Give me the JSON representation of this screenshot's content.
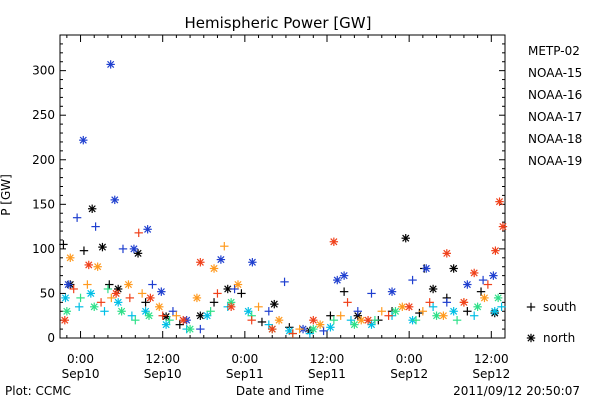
{
  "chart_data": {
    "type": "scatter",
    "title": "Hemispheric Power [GW]",
    "ylabel": "P [GW]",
    "xlabel": "Date and Time",
    "ylim": [
      0,
      340
    ],
    "yticks": [
      0,
      50,
      100,
      150,
      200,
      250,
      300
    ],
    "grid": false,
    "x_unit": "hours",
    "xlim": [
      -3,
      62
    ],
    "xticks": [
      {
        "x": 0,
        "time": "0:00",
        "date": "Sep10"
      },
      {
        "x": 12,
        "time": "12:00",
        "date": "Sep10"
      },
      {
        "x": 24,
        "time": "0:00",
        "date": "Sep11"
      },
      {
        "x": 36,
        "time": "12:00",
        "date": "Sep11"
      },
      {
        "x": 48,
        "time": "0:00",
        "date": "Sep12"
      },
      {
        "x": 60,
        "time": "12:00",
        "date": "Sep12"
      }
    ],
    "legend": {
      "placement": "right",
      "markers": [
        {
          "symbol": "+",
          "label": "south"
        },
        {
          "symbol": "*",
          "label": "north"
        }
      ]
    },
    "series": [
      {
        "name": "METP-02",
        "color": "#000000",
        "points": [
          {
            "x": -2.5,
            "y": 105,
            "m": "+"
          },
          {
            "x": -1.5,
            "y": 60,
            "m": "*"
          },
          {
            "x": 0.5,
            "y": 98,
            "m": "+"
          },
          {
            "x": 1.7,
            "y": 145,
            "m": "*"
          },
          {
            "x": 3.2,
            "y": 102,
            "m": "*"
          },
          {
            "x": 4.2,
            "y": 60,
            "m": "+"
          },
          {
            "x": 5.5,
            "y": 55,
            "m": "*"
          },
          {
            "x": 8.4,
            "y": 95,
            "m": "*"
          },
          {
            "x": 9.5,
            "y": 40,
            "m": "+"
          },
          {
            "x": 12.5,
            "y": 24,
            "m": "*"
          },
          {
            "x": 14.5,
            "y": 15,
            "m": "+"
          },
          {
            "x": 17.5,
            "y": 25,
            "m": "*"
          },
          {
            "x": 19.5,
            "y": 40,
            "m": "+"
          },
          {
            "x": 21.5,
            "y": 55,
            "m": "*"
          },
          {
            "x": 23.5,
            "y": 50,
            "m": "+"
          },
          {
            "x": 26.5,
            "y": 18,
            "m": "+"
          },
          {
            "x": 28.3,
            "y": 38,
            "m": "*"
          },
          {
            "x": 30.5,
            "y": 12,
            "m": "+"
          },
          {
            "x": 33.5,
            "y": 8,
            "m": "*"
          },
          {
            "x": 36.5,
            "y": 25,
            "m": "+"
          },
          {
            "x": 38.5,
            "y": 52,
            "m": "+"
          },
          {
            "x": 40.5,
            "y": 25,
            "m": "*"
          },
          {
            "x": 43.5,
            "y": 20,
            "m": "+"
          },
          {
            "x": 45.5,
            "y": 30,
            "m": "+"
          },
          {
            "x": 47.5,
            "y": 112,
            "m": "*"
          },
          {
            "x": 49.5,
            "y": 28,
            "m": "+"
          },
          {
            "x": 50.2,
            "y": 78,
            "m": "+"
          },
          {
            "x": 51.5,
            "y": 55,
            "m": "*"
          },
          {
            "x": 53.5,
            "y": 45,
            "m": "+"
          },
          {
            "x": 54.5,
            "y": 78,
            "m": "*"
          },
          {
            "x": 56.5,
            "y": 30,
            "m": "+"
          },
          {
            "x": 58.5,
            "y": 52,
            "m": "+"
          },
          {
            "x": 60.5,
            "y": 28,
            "m": "*"
          }
        ]
      },
      {
        "name": "NOAA-15",
        "color": "#1f3fcf",
        "points": [
          {
            "x": -1.8,
            "y": 60,
            "m": "*"
          },
          {
            "x": -0.5,
            "y": 135,
            "m": "+"
          },
          {
            "x": 0.4,
            "y": 222,
            "m": "*"
          },
          {
            "x": 2.2,
            "y": 125,
            "m": "+"
          },
          {
            "x": 4.4,
            "y": 307,
            "m": "*"
          },
          {
            "x": 5.0,
            "y": 155,
            "m": "*"
          },
          {
            "x": 6.2,
            "y": 100,
            "m": "+"
          },
          {
            "x": 7.8,
            "y": 100,
            "m": "*"
          },
          {
            "x": 9.8,
            "y": 122,
            "m": "*"
          },
          {
            "x": 10.5,
            "y": 60,
            "m": "+"
          },
          {
            "x": 11.8,
            "y": 52,
            "m": "*"
          },
          {
            "x": 13.5,
            "y": 30,
            "m": "+"
          },
          {
            "x": 15.5,
            "y": 20,
            "m": "*"
          },
          {
            "x": 17.5,
            "y": 10,
            "m": "+"
          },
          {
            "x": 20.5,
            "y": 88,
            "m": "*"
          },
          {
            "x": 22.5,
            "y": 55,
            "m": "+"
          },
          {
            "x": 25.1,
            "y": 85,
            "m": "*"
          },
          {
            "x": 27.5,
            "y": 30,
            "m": "+"
          },
          {
            "x": 29.8,
            "y": 63,
            "m": "+"
          },
          {
            "x": 32.5,
            "y": 10,
            "m": "*"
          },
          {
            "x": 35.5,
            "y": 8,
            "m": "+"
          },
          {
            "x": 37.5,
            "y": 65,
            "m": "*"
          },
          {
            "x": 38.5,
            "y": 70,
            "m": "*"
          },
          {
            "x": 40.5,
            "y": 30,
            "m": "+"
          },
          {
            "x": 42.5,
            "y": 50,
            "m": "+"
          },
          {
            "x": 45.5,
            "y": 52,
            "m": "*"
          },
          {
            "x": 48.5,
            "y": 65,
            "m": "+"
          },
          {
            "x": 50.5,
            "y": 78,
            "m": "*"
          },
          {
            "x": 53.5,
            "y": 40,
            "m": "+"
          },
          {
            "x": 56.5,
            "y": 60,
            "m": "*"
          },
          {
            "x": 58.8,
            "y": 65,
            "m": "+"
          },
          {
            "x": 60.3,
            "y": 70,
            "m": "*"
          }
        ]
      },
      {
        "name": "NOAA-16",
        "color": "#00bfe6",
        "points": [
          {
            "x": -2.2,
            "y": 45,
            "m": "*"
          },
          {
            "x": -0.2,
            "y": 35,
            "m": "+"
          },
          {
            "x": 1.5,
            "y": 50,
            "m": "*"
          },
          {
            "x": 3.5,
            "y": 30,
            "m": "+"
          },
          {
            "x": 5.5,
            "y": 40,
            "m": "*"
          },
          {
            "x": 7.5,
            "y": 25,
            "m": "+"
          },
          {
            "x": 9.5,
            "y": 30,
            "m": "*"
          },
          {
            "x": 12.5,
            "y": 15,
            "m": "*"
          },
          {
            "x": 15.5,
            "y": 10,
            "m": "+"
          },
          {
            "x": 18.5,
            "y": 25,
            "m": "*"
          },
          {
            "x": 21.5,
            "y": 35,
            "m": "+"
          },
          {
            "x": 24.5,
            "y": 30,
            "m": "*"
          },
          {
            "x": 27.5,
            "y": 15,
            "m": "+"
          },
          {
            "x": 30.5,
            "y": 8,
            "m": "*"
          },
          {
            "x": 33.5,
            "y": 5,
            "m": "+"
          },
          {
            "x": 36.5,
            "y": 12,
            "m": "*"
          },
          {
            "x": 39.5,
            "y": 20,
            "m": "+"
          },
          {
            "x": 42.5,
            "y": 15,
            "m": "*"
          },
          {
            "x": 45.5,
            "y": 25,
            "m": "+"
          },
          {
            "x": 48.5,
            "y": 20,
            "m": "*"
          },
          {
            "x": 51.5,
            "y": 35,
            "m": "+"
          },
          {
            "x": 54.5,
            "y": 30,
            "m": "*"
          },
          {
            "x": 57.5,
            "y": 25,
            "m": "+"
          },
          {
            "x": 60.5,
            "y": 30,
            "m": "*"
          },
          {
            "x": 61.5,
            "y": 35,
            "m": "+"
          }
        ]
      },
      {
        "name": "NOAA-17",
        "color": "#2ee089",
        "points": [
          {
            "x": -2.0,
            "y": 30,
            "m": "*"
          },
          {
            "x": 0.0,
            "y": 45,
            "m": "+"
          },
          {
            "x": 2.0,
            "y": 35,
            "m": "*"
          },
          {
            "x": 4.0,
            "y": 55,
            "m": "+"
          },
          {
            "x": 6.0,
            "y": 30,
            "m": "*"
          },
          {
            "x": 8.0,
            "y": 20,
            "m": "+"
          },
          {
            "x": 10.0,
            "y": 25,
            "m": "*"
          },
          {
            "x": 13.0,
            "y": 20,
            "m": "+"
          },
          {
            "x": 16.0,
            "y": 10,
            "m": "*"
          },
          {
            "x": 19.0,
            "y": 30,
            "m": "+"
          },
          {
            "x": 22.0,
            "y": 40,
            "m": "*"
          },
          {
            "x": 25.0,
            "y": 25,
            "m": "+"
          },
          {
            "x": 28.0,
            "y": 10,
            "m": "*"
          },
          {
            "x": 31.0,
            "y": 5,
            "m": "+"
          },
          {
            "x": 34.0,
            "y": 10,
            "m": "*"
          },
          {
            "x": 37.0,
            "y": 20,
            "m": "+"
          },
          {
            "x": 40.0,
            "y": 15,
            "m": "*"
          },
          {
            "x": 43.0,
            "y": 20,
            "m": "+"
          },
          {
            "x": 46.0,
            "y": 30,
            "m": "*"
          },
          {
            "x": 49.0,
            "y": 20,
            "m": "+"
          },
          {
            "x": 52.0,
            "y": 25,
            "m": "*"
          },
          {
            "x": 55.0,
            "y": 20,
            "m": "+"
          },
          {
            "x": 58.0,
            "y": 35,
            "m": "*"
          },
          {
            "x": 61.0,
            "y": 45,
            "m": "*"
          }
        ]
      },
      {
        "name": "NOAA-18",
        "color": "#ff9a1f",
        "points": [
          {
            "x": -1.5,
            "y": 90,
            "m": "*"
          },
          {
            "x": 1.0,
            "y": 60,
            "m": "+"
          },
          {
            "x": 2.5,
            "y": 80,
            "m": "*"
          },
          {
            "x": 4.5,
            "y": 45,
            "m": "+"
          },
          {
            "x": 7.0,
            "y": 60,
            "m": "*"
          },
          {
            "x": 9.0,
            "y": 50,
            "m": "+"
          },
          {
            "x": 11.5,
            "y": 35,
            "m": "*"
          },
          {
            "x": 14.0,
            "y": 25,
            "m": "+"
          },
          {
            "x": 17.0,
            "y": 45,
            "m": "*"
          },
          {
            "x": 19.5,
            "y": 78,
            "m": "*"
          },
          {
            "x": 21.0,
            "y": 103,
            "m": "+"
          },
          {
            "x": 23.0,
            "y": 60,
            "m": "*"
          },
          {
            "x": 26.0,
            "y": 35,
            "m": "+"
          },
          {
            "x": 29.0,
            "y": 20,
            "m": "*"
          },
          {
            "x": 32.0,
            "y": 10,
            "m": "+"
          },
          {
            "x": 35.0,
            "y": 15,
            "m": "*"
          },
          {
            "x": 38.0,
            "y": 25,
            "m": "+"
          },
          {
            "x": 41.0,
            "y": 20,
            "m": "*"
          },
          {
            "x": 44.0,
            "y": 30,
            "m": "+"
          },
          {
            "x": 47.0,
            "y": 35,
            "m": "*"
          },
          {
            "x": 50.0,
            "y": 30,
            "m": "+"
          },
          {
            "x": 53.0,
            "y": 25,
            "m": "*"
          },
          {
            "x": 56.0,
            "y": 40,
            "m": "+"
          },
          {
            "x": 59.0,
            "y": 45,
            "m": "*"
          }
        ]
      },
      {
        "name": "NOAA-19",
        "color": "#f0401a",
        "points": [
          {
            "x": -2.3,
            "y": 20,
            "m": "*"
          },
          {
            "x": -1.0,
            "y": 55,
            "m": "+"
          },
          {
            "x": 1.2,
            "y": 82,
            "m": "*"
          },
          {
            "x": 3.0,
            "y": 40,
            "m": "+"
          },
          {
            "x": 5.2,
            "y": 50,
            "m": "*"
          },
          {
            "x": 7.2,
            "y": 45,
            "m": "+"
          },
          {
            "x": 8.5,
            "y": 118,
            "m": "+"
          },
          {
            "x": 10.2,
            "y": 45,
            "m": "*"
          },
          {
            "x": 12.0,
            "y": 25,
            "m": "+"
          },
          {
            "x": 15.0,
            "y": 20,
            "m": "*"
          },
          {
            "x": 17.5,
            "y": 85,
            "m": "*"
          },
          {
            "x": 20.0,
            "y": 50,
            "m": "+"
          },
          {
            "x": 22.0,
            "y": 35,
            "m": "*"
          },
          {
            "x": 25.0,
            "y": 20,
            "m": "+"
          },
          {
            "x": 28.0,
            "y": 10,
            "m": "*"
          },
          {
            "x": 31.0,
            "y": 5,
            "m": "+"
          },
          {
            "x": 34.0,
            "y": 20,
            "m": "*"
          },
          {
            "x": 37.0,
            "y": 108,
            "m": "*"
          },
          {
            "x": 39.0,
            "y": 40,
            "m": "+"
          },
          {
            "x": 42.0,
            "y": 20,
            "m": "*"
          },
          {
            "x": 45.0,
            "y": 25,
            "m": "+"
          },
          {
            "x": 48.0,
            "y": 35,
            "m": "*"
          },
          {
            "x": 51.0,
            "y": 40,
            "m": "+"
          },
          {
            "x": 53.5,
            "y": 95,
            "m": "*"
          },
          {
            "x": 56.0,
            "y": 40,
            "m": "*"
          },
          {
            "x": 57.5,
            "y": 73,
            "m": "*"
          },
          {
            "x": 59.5,
            "y": 60,
            "m": "+"
          },
          {
            "x": 60.6,
            "y": 98,
            "m": "*"
          },
          {
            "x": 61.2,
            "y": 153,
            "m": "*"
          },
          {
            "x": 61.7,
            "y": 125,
            "m": "*"
          }
        ]
      }
    ]
  },
  "footer": {
    "left": "Plot: CCMC",
    "right": "2011/09/12 20:50:07"
  }
}
